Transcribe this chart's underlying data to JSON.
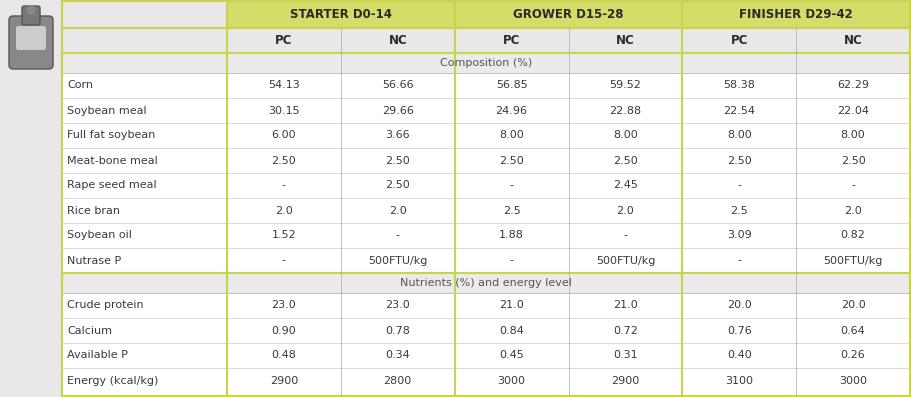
{
  "col_groups": [
    {
      "label": "STARTER D0-14"
    },
    {
      "label": "GROWER D15-28"
    },
    {
      "label": "FINISHER D29-42"
    }
  ],
  "section1_label": "Composition (%)",
  "section2_label": "Nutrients (%) and energy level",
  "composition_rows": [
    {
      "label": "Corn",
      "vals": [
        "54.13",
        "56.66",
        "56.85",
        "59.52",
        "58.38",
        "62.29"
      ]
    },
    {
      "label": "Soybean meal",
      "vals": [
        "30.15",
        "29.66",
        "24.96",
        "22.88",
        "22.54",
        "22.04"
      ]
    },
    {
      "label": "Full fat soybean",
      "vals": [
        "6.00",
        "3.66",
        "8.00",
        "8.00",
        "8.00",
        "8.00"
      ]
    },
    {
      "label": "Meat-bone meal",
      "vals": [
        "2.50",
        "2.50",
        "2.50",
        "2.50",
        "2.50",
        "2.50"
      ]
    },
    {
      "label": "Rape seed meal",
      "vals": [
        "-",
        "2.50",
        "-",
        "2.45",
        "-",
        "-"
      ]
    },
    {
      "label": "Rice bran",
      "vals": [
        "2.0",
        "2.0",
        "2.5",
        "2.0",
        "2.5",
        "2.0"
      ]
    },
    {
      "label": "Soybean oil",
      "vals": [
        "1.52",
        "-",
        "1.88",
        "-",
        "3.09",
        "0.82"
      ]
    },
    {
      "label": "Nutrase P",
      "vals": [
        "-",
        "500FTU/kg",
        "-",
        "500FTU/kg",
        "-",
        "500FTU/kg"
      ]
    }
  ],
  "nutrient_rows": [
    {
      "label": "Crude protein",
      "vals": [
        "23.0",
        "23.0",
        "21.0",
        "21.0",
        "20.0",
        "20.0"
      ]
    },
    {
      "label": "Calcium",
      "vals": [
        "0.90",
        "0.78",
        "0.84",
        "0.72",
        "0.76",
        "0.64"
      ]
    },
    {
      "label": "Available P",
      "vals": [
        "0.48",
        "0.34",
        "0.45",
        "0.31",
        "0.40",
        "0.26"
      ]
    },
    {
      "label": "Energy (kcal/kg)",
      "vals": [
        "2900",
        "2800",
        "3000",
        "2900",
        "3100",
        "3000"
      ]
    }
  ],
  "header_bg": "#d4dc6a",
  "subheader_bg": "#e8e8e8",
  "section_bg": "#ebebeb",
  "row_bg": "#ffffff",
  "border_color": "#c8d44e",
  "text_color": "#3a3a3a",
  "icon_bg": "#e8e8e8",
  "font_size": 8.0,
  "header_font_size": 8.5
}
